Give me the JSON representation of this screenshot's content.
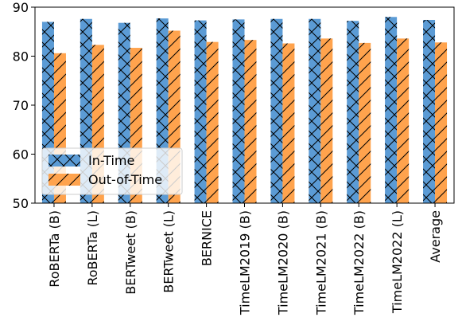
{
  "chart_data": {
    "type": "bar",
    "categories": [
      "RoBERTa (B)",
      "RoBERTa (L)",
      "BERTweet (B)",
      "BERTweet (L)",
      "BERNICE",
      "TimeLM2019 (B)",
      "TimeLM2020 (B)",
      "TimeLM2021 (B)",
      "TimeLM2022 (B)",
      "TimeLM2022 (L)",
      "Average"
    ],
    "series": [
      {
        "name": "In-Time",
        "color": "#5b9bd5",
        "hatch": "cross",
        "values": [
          87.0,
          87.6,
          86.8,
          87.7,
          87.3,
          87.5,
          87.6,
          87.6,
          87.2,
          88.0,
          87.4
        ]
      },
      {
        "name": "Out-of-Time",
        "color": "#ffa34d",
        "hatch": "diagonal",
        "values": [
          80.6,
          82.3,
          81.7,
          85.2,
          82.9,
          83.3,
          82.6,
          83.6,
          82.7,
          83.6,
          82.8
        ]
      }
    ],
    "ylim": [
      50,
      90
    ],
    "yticks": [
      50,
      60,
      70,
      80,
      90
    ],
    "title": "",
    "xlabel": "",
    "ylabel": "",
    "legend_position": "lower-left",
    "grid": false
  }
}
